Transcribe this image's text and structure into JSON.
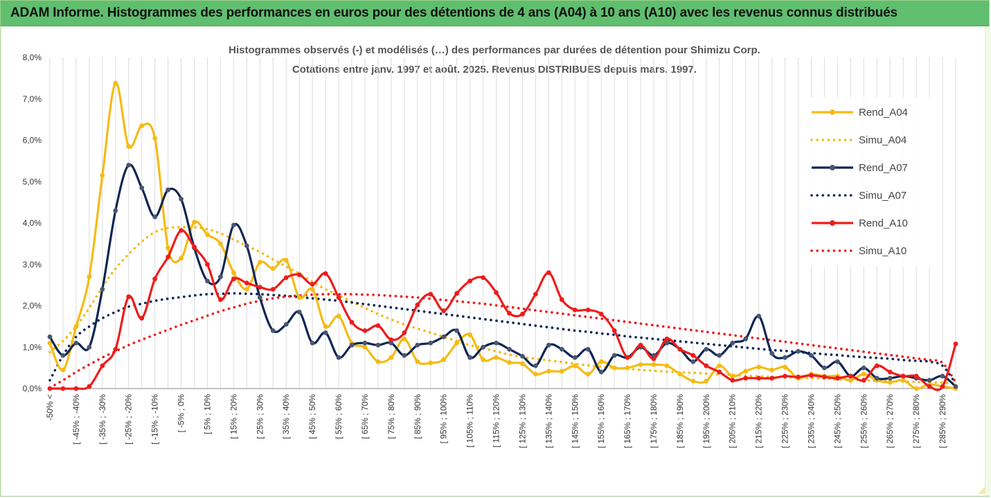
{
  "banner": {
    "title": "ADAM Informe. Histogrammes des performances en euros pour des détentions de 4 ans (A04) à 10 ans (A10) avec les revenus connus distribués"
  },
  "chart_data": {
    "type": "line",
    "title_lines": [
      "Histogrammes observés (-) et modélisés (…) des performances par durées de détention pour Shimizu Corp.",
      "Cotations entre janv. 1997 et août. 2025. Revenus DISTRIBUES depuis mars. 1997."
    ],
    "xlabel": "",
    "ylabel": "",
    "ylim": [
      0,
      0.08
    ],
    "yticks": [
      0,
      0.01,
      0.02,
      0.03,
      0.04,
      0.05,
      0.06,
      0.07,
      0.08
    ],
    "ytick_labels": [
      "0,0%",
      "1,0%",
      "2,0%",
      "3,0%",
      "4,0%",
      "5,0%",
      "6,0%",
      "7,0%",
      "8,0%"
    ],
    "grid": "vertical",
    "legend_position": "right",
    "x_label_list": [
      "-50% <",
      "[ -45% ; -40%",
      "[ -35% ; -30%",
      "[ -25% ; -20%",
      "[ -15% ; -10%",
      "[ -5% ; 0%",
      "[ 5% ; 10%",
      "[ 15% ; 20%",
      "[ 25% ; 30%",
      "[ 35% ; 40%",
      "[ 45% ; 50%",
      "[ 55% ; 60%",
      "[ 65% ; 70%",
      "[ 75% ; 80%",
      "[ 85% ; 90%",
      "[ 95% ; 100%",
      "[ 105% ; 110%",
      "[ 115% ; 120%",
      "[ 125% ; 130%",
      "[ 135% ; 140%",
      "[ 145% ; 150%",
      "[ 155% ; 160%",
      "[ 165% ; 170%",
      "[ 175% ; 180%",
      "[ 185% ; 190%",
      "[ 195% ; 200%",
      "[ 205% ; 210%",
      "[ 215% ; 220%",
      "[ 225% ; 230%",
      "[ 235% ; 240%",
      "[ 245% ; 250%",
      "[ 255% ; 260%",
      "[ 265% ; 270%",
      "[ 275% ; 280%",
      "[ 285% ; 290%"
    ],
    "series": [
      {
        "name": "Rend_A04",
        "color": "#f5bb14",
        "style": "solid",
        "values": [
          1.1,
          0.45,
          1.5,
          2.7,
          5.15,
          7.38,
          5.85,
          6.35,
          6.05,
          3.4,
          3.15,
          4.02,
          3.72,
          3.5,
          2.8,
          2.4,
          3.05,
          2.9,
          3.1,
          2.2,
          2.4,
          1.5,
          1.75,
          1.1,
          1.0,
          0.65,
          0.75,
          1.2,
          0.65,
          0.62,
          0.7,
          1.1,
          1.3,
          0.7,
          0.75,
          0.63,
          0.6,
          0.35,
          0.42,
          0.42,
          0.55,
          0.35,
          0.65,
          0.5,
          0.5,
          0.58,
          0.58,
          0.55,
          0.35,
          0.18,
          0.18,
          0.55,
          0.3,
          0.42,
          0.52,
          0.45,
          0.52,
          0.25,
          0.35,
          0.3,
          0.3,
          0.2,
          0.35,
          0.2,
          0.15,
          0.2,
          0.0,
          0.1,
          0.05,
          0.0
        ]
      },
      {
        "name": "Simu_A04",
        "color": "#f5bb14",
        "style": "dotted",
        "values": [
          0.88,
          1.15,
          1.5,
          1.95,
          2.45,
          2.9,
          3.25,
          3.55,
          3.78,
          3.88,
          3.9,
          3.9,
          3.85,
          3.75,
          3.6,
          3.45,
          3.3,
          3.12,
          2.95,
          2.78,
          2.58,
          2.4,
          2.25,
          2.1,
          1.95,
          1.8,
          1.67,
          1.55,
          1.45,
          1.35,
          1.25,
          1.15,
          1.05,
          0.98,
          0.9,
          0.82,
          0.76,
          0.72,
          0.68,
          0.64,
          0.6,
          0.56,
          0.53,
          0.5,
          0.48,
          0.45,
          0.43,
          0.41,
          0.39,
          0.38,
          0.36,
          0.34,
          0.33,
          0.31,
          0.3,
          0.28,
          0.27,
          0.26,
          0.25,
          0.24,
          0.22,
          0.21,
          0.2,
          0.19,
          0.18,
          0.17,
          0.16,
          0.15,
          0.14,
          0.13
        ]
      },
      {
        "name": "Rend_A07",
        "color": "#0f2654",
        "style": "solid",
        "values": [
          1.25,
          0.8,
          1.1,
          1.0,
          2.4,
          4.3,
          5.4,
          4.85,
          4.15,
          4.8,
          4.58,
          3.4,
          2.6,
          2.7,
          3.95,
          3.45,
          2.2,
          1.4,
          1.55,
          1.85,
          1.1,
          1.35,
          0.75,
          1.05,
          1.1,
          1.05,
          1.1,
          0.8,
          1.05,
          1.1,
          1.25,
          1.4,
          0.75,
          1.0,
          1.1,
          0.95,
          0.78,
          0.55,
          1.05,
          0.95,
          0.75,
          0.95,
          0.4,
          0.8,
          0.75,
          1.0,
          0.8,
          1.1,
          0.95,
          0.65,
          0.95,
          0.8,
          1.1,
          1.2,
          1.75,
          0.85,
          0.75,
          0.9,
          0.8,
          0.5,
          0.65,
          0.3,
          0.5,
          0.25,
          0.25,
          0.3,
          0.25,
          0.2,
          0.3,
          0.05
        ]
      },
      {
        "name": "Simu_A07",
        "color": "#0f2654",
        "style": "dotted",
        "values": [
          0.2,
          0.8,
          1.25,
          1.5,
          1.7,
          1.85,
          1.98,
          2.05,
          2.12,
          2.17,
          2.21,
          2.25,
          2.28,
          2.29,
          2.3,
          2.29,
          2.28,
          2.26,
          2.24,
          2.21,
          2.18,
          2.15,
          2.12,
          2.08,
          2.04,
          2.0,
          1.96,
          1.92,
          1.88,
          1.84,
          1.8,
          1.76,
          1.72,
          1.68,
          1.64,
          1.6,
          1.56,
          1.52,
          1.48,
          1.44,
          1.4,
          1.37,
          1.33,
          1.3,
          1.26,
          1.23,
          1.2,
          1.17,
          1.14,
          1.11,
          1.08,
          1.05,
          1.02,
          0.99,
          0.96,
          0.93,
          0.91,
          0.88,
          0.86,
          0.83,
          0.81,
          0.78,
          0.76,
          0.74,
          0.72,
          0.69,
          0.67,
          0.65,
          0.55,
          0.12
        ]
      },
      {
        "name": "Rend_A10",
        "color": "#ee1c1c",
        "style": "solid",
        "values": [
          0.0,
          0.0,
          0.0,
          0.05,
          0.55,
          0.95,
          2.22,
          1.7,
          2.65,
          3.18,
          3.82,
          3.42,
          3.0,
          2.15,
          2.65,
          2.55,
          2.45,
          2.4,
          2.68,
          2.75,
          2.52,
          2.78,
          2.2,
          1.6,
          1.4,
          1.52,
          1.18,
          1.35,
          2.02,
          2.28,
          1.88,
          2.3,
          2.6,
          2.68,
          2.32,
          1.82,
          1.8,
          2.28,
          2.8,
          2.15,
          1.9,
          1.9,
          1.8,
          1.4,
          0.75,
          1.05,
          0.72,
          1.2,
          0.95,
          0.8,
          0.55,
          0.4,
          0.2,
          0.25,
          0.25,
          0.25,
          0.3,
          0.28,
          0.32,
          0.28,
          0.25,
          0.3,
          0.2,
          0.55,
          0.4,
          0.3,
          0.3,
          0.05,
          0.05,
          1.08
        ]
      },
      {
        "name": "Simu_A10",
        "color": "#ee1c1c",
        "style": "dotted",
        "values": [
          0.02,
          0.2,
          0.4,
          0.58,
          0.75,
          0.9,
          1.05,
          1.18,
          1.3,
          1.42,
          1.54,
          1.65,
          1.76,
          1.87,
          1.96,
          2.05,
          2.12,
          2.18,
          2.22,
          2.25,
          2.27,
          2.28,
          2.28,
          2.28,
          2.27,
          2.26,
          2.24,
          2.22,
          2.2,
          2.17,
          2.14,
          2.11,
          2.08,
          2.05,
          2.01,
          1.97,
          1.93,
          1.89,
          1.85,
          1.81,
          1.77,
          1.73,
          1.69,
          1.65,
          1.61,
          1.57,
          1.53,
          1.49,
          1.45,
          1.41,
          1.37,
          1.33,
          1.29,
          1.25,
          1.21,
          1.17,
          1.13,
          1.09,
          1.05,
          1.01,
          0.97,
          0.93,
          0.89,
          0.85,
          0.81,
          0.77,
          0.73,
          0.69,
          0.62,
          0.15
        ]
      }
    ],
    "value_unit": "percent"
  }
}
